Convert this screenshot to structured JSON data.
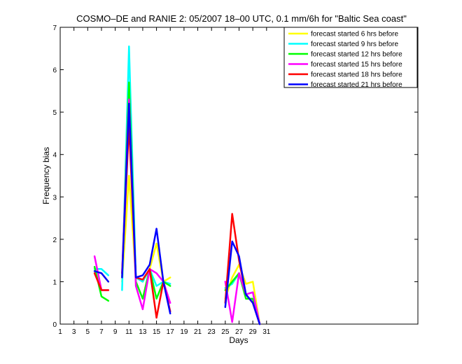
{
  "chart_data": {
    "type": "line",
    "title": "COSMO–DE and RANIE 2: 05/2007 18–00 UTC, 0.1 mm/6h for \"Baltic Sea coast\"",
    "xlabel": "Days",
    "ylabel": "Frequency bias",
    "xlim": [
      1,
      53
    ],
    "ylim": [
      0,
      7
    ],
    "xticks": [
      1,
      3,
      5,
      7,
      9,
      11,
      13,
      15,
      17,
      19,
      21,
      23,
      25,
      27,
      29,
      31
    ],
    "yticks": [
      0,
      1,
      2,
      3,
      4,
      5,
      6,
      7
    ],
    "legend_position": "top-right",
    "grid": false,
    "series": [
      {
        "name": "forecast started 6 hrs before",
        "color": "#ffff00",
        "points": [
          [
            [
              6,
              1.25
            ],
            [
              7,
              1.2
            ],
            [
              8,
              1.0
            ]
          ],
          [
            [
              10,
              1.0
            ],
            [
              11,
              3.5
            ],
            [
              12,
              1.1
            ],
            [
              13,
              1.0
            ],
            [
              14,
              1.3
            ],
            [
              15,
              1.9
            ],
            [
              16,
              1.0
            ],
            [
              17,
              1.1
            ]
          ],
          [
            [
              25,
              0.6
            ],
            [
              26,
              1.1
            ],
            [
              27,
              1.4
            ],
            [
              28,
              0.95
            ],
            [
              29,
              1.0
            ],
            [
              30,
              0.0
            ]
          ]
        ]
      },
      {
        "name": "forecast started 9 hrs before",
        "color": "#00ffff",
        "points": [
          [
            [
              6,
              1.3
            ],
            [
              7,
              1.3
            ],
            [
              8,
              1.15
            ]
          ],
          [
            [
              10,
              0.8
            ],
            [
              11,
              6.55
            ],
            [
              12,
              1.1
            ],
            [
              13,
              1.0
            ],
            [
              14,
              1.3
            ],
            [
              15,
              0.9
            ],
            [
              16,
              1.0
            ],
            [
              17,
              0.95
            ]
          ],
          [
            [
              25,
              0.85
            ],
            [
              26,
              0.95
            ],
            [
              27,
              1.2
            ],
            [
              28,
              0.7
            ],
            [
              29,
              0.75
            ],
            [
              30,
              0.0
            ]
          ]
        ]
      },
      {
        "name": "forecast started 12 hrs before",
        "color": "#00ff00",
        "points": [
          [
            [
              6,
              1.35
            ],
            [
              7,
              0.65
            ],
            [
              8,
              0.55
            ]
          ],
          [
            [
              10,
              1.1
            ],
            [
              11,
              5.7
            ],
            [
              12,
              1.0
            ],
            [
              13,
              0.6
            ],
            [
              14,
              1.3
            ],
            [
              15,
              0.6
            ],
            [
              16,
              1.0
            ],
            [
              17,
              0.9
            ]
          ],
          [
            [
              25,
              0.8
            ],
            [
              26,
              1.0
            ],
            [
              27,
              1.2
            ],
            [
              28,
              0.6
            ],
            [
              29,
              0.6
            ],
            [
              30,
              0.0
            ]
          ]
        ]
      },
      {
        "name": "forecast started 15 hrs before",
        "color": "#ff00ff",
        "points": [
          [
            [
              6,
              1.6
            ],
            [
              7,
              0.8
            ],
            [
              8,
              0.8
            ]
          ],
          [
            [
              10,
              1.2
            ],
            [
              11,
              5.3
            ],
            [
              12,
              0.9
            ],
            [
              13,
              0.35
            ],
            [
              14,
              1.3
            ],
            [
              15,
              1.2
            ],
            [
              16,
              1.0
            ],
            [
              17,
              0.5
            ]
          ],
          [
            [
              25,
              1.0
            ],
            [
              26,
              0.05
            ],
            [
              27,
              1.2
            ],
            [
              28,
              0.7
            ],
            [
              29,
              0.75
            ],
            [
              30,
              0.0
            ]
          ]
        ]
      },
      {
        "name": "forecast started 18 hrs before",
        "color": "#ff0000",
        "points": [
          [
            [
              6,
              1.2
            ],
            [
              7,
              0.8
            ],
            [
              8,
              0.8
            ]
          ],
          [
            [
              10,
              1.2
            ],
            [
              11,
              4.7
            ],
            [
              12,
              1.1
            ],
            [
              13,
              1.05
            ],
            [
              14,
              1.3
            ],
            [
              15,
              0.15
            ],
            [
              16,
              1.0
            ],
            [
              17,
              0.3
            ]
          ],
          [
            [
              25,
              0.5
            ],
            [
              26,
              2.6
            ],
            [
              27,
              1.5
            ],
            [
              28,
              0.7
            ],
            [
              29,
              0.5
            ],
            [
              30,
              0.0
            ]
          ]
        ]
      },
      {
        "name": "forecast started 21 hrs before",
        "color": "#0000ff",
        "points": [
          [
            [
              6,
              1.25
            ],
            [
              7,
              1.2
            ],
            [
              8,
              1.0
            ]
          ],
          [
            [
              10,
              1.1
            ],
            [
              11,
              5.2
            ],
            [
              12,
              1.1
            ],
            [
              13,
              1.15
            ],
            [
              14,
              1.4
            ],
            [
              15,
              2.25
            ],
            [
              16,
              1.0
            ],
            [
              17,
              0.25
            ]
          ],
          [
            [
              25,
              0.4
            ],
            [
              26,
              1.95
            ],
            [
              27,
              1.6
            ],
            [
              28,
              0.7
            ],
            [
              29,
              0.5
            ],
            [
              30,
              0.0
            ]
          ]
        ]
      }
    ]
  }
}
